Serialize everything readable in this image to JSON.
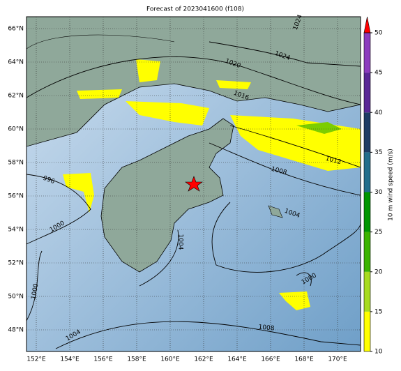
{
  "title": "Forecast of 2023041600 (f108)",
  "map": {
    "lat_labels": [
      "48°N",
      "50°N",
      "52°N",
      "54°N",
      "56°N",
      "58°N",
      "60°N",
      "62°N",
      "64°N",
      "66°N"
    ],
    "lon_labels": [
      "152°E",
      "154°E",
      "156°E",
      "158°E",
      "160°E",
      "162°E",
      "164°E",
      "166°E",
      "168°E",
      "170°E"
    ],
    "contour_labels": [
      "1024",
      "1024",
      "1020",
      "1016",
      "1012",
      "1008",
      "996",
      "1000",
      "1004",
      "1004",
      "1000",
      "1000",
      "1004",
      "1008"
    ]
  },
  "colorbar": {
    "label": "10 m wind speed (m/s)",
    "ticks": [
      10,
      15,
      20,
      25,
      30,
      35,
      40,
      45,
      50
    ],
    "colors": [
      "#ffff00",
      "#a8dc1e",
      "#3cb400",
      "#009600",
      "#236e8c",
      "#1e3c64",
      "#5a2896",
      "#8c3cbe"
    ],
    "extend_color": "#ff0000"
  }
}
